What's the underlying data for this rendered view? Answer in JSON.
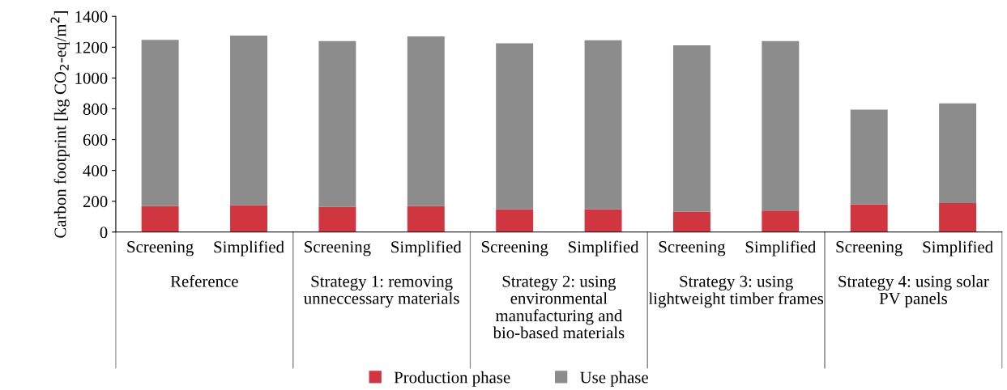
{
  "chart_data": {
    "type": "bar",
    "stacked": true,
    "ylabel": "Carbon footprint [kg CO$_{2}$-eq/m$^{2}$]",
    "categories": [
      "Screening",
      "Simplified",
      "Screening",
      "Simplified",
      "Screening",
      "Simplified",
      "Screening",
      "Simplified",
      "Screening",
      "Simplified"
    ],
    "annotations": [
      "Reference",
      "Strategy 1: removing unneccessary materials",
      "Strategy 2: using environmental manufacturing and bio-based materials",
      "Strategy 3: using lightweight timber frames",
      "Strategy 4: using solar PV panels"
    ],
    "series": [
      {
        "name": "Production phase",
        "color": "#d0363f",
        "values": [
          170,
          175,
          165,
          170,
          148,
          148,
          133,
          140,
          180,
          188
        ]
      },
      {
        "name": "Use phase",
        "color": "#8c8c8c",
        "values": [
          1078,
          1100,
          1075,
          1100,
          1077,
          1097,
          1079,
          1100,
          615,
          647
        ]
      }
    ],
    "ylim": [
      0,
      1400
    ],
    "yticks": [
      0,
      200,
      400,
      600,
      800,
      1000,
      1200,
      1400
    ],
    "legend": "bottom",
    "grid": false
  }
}
